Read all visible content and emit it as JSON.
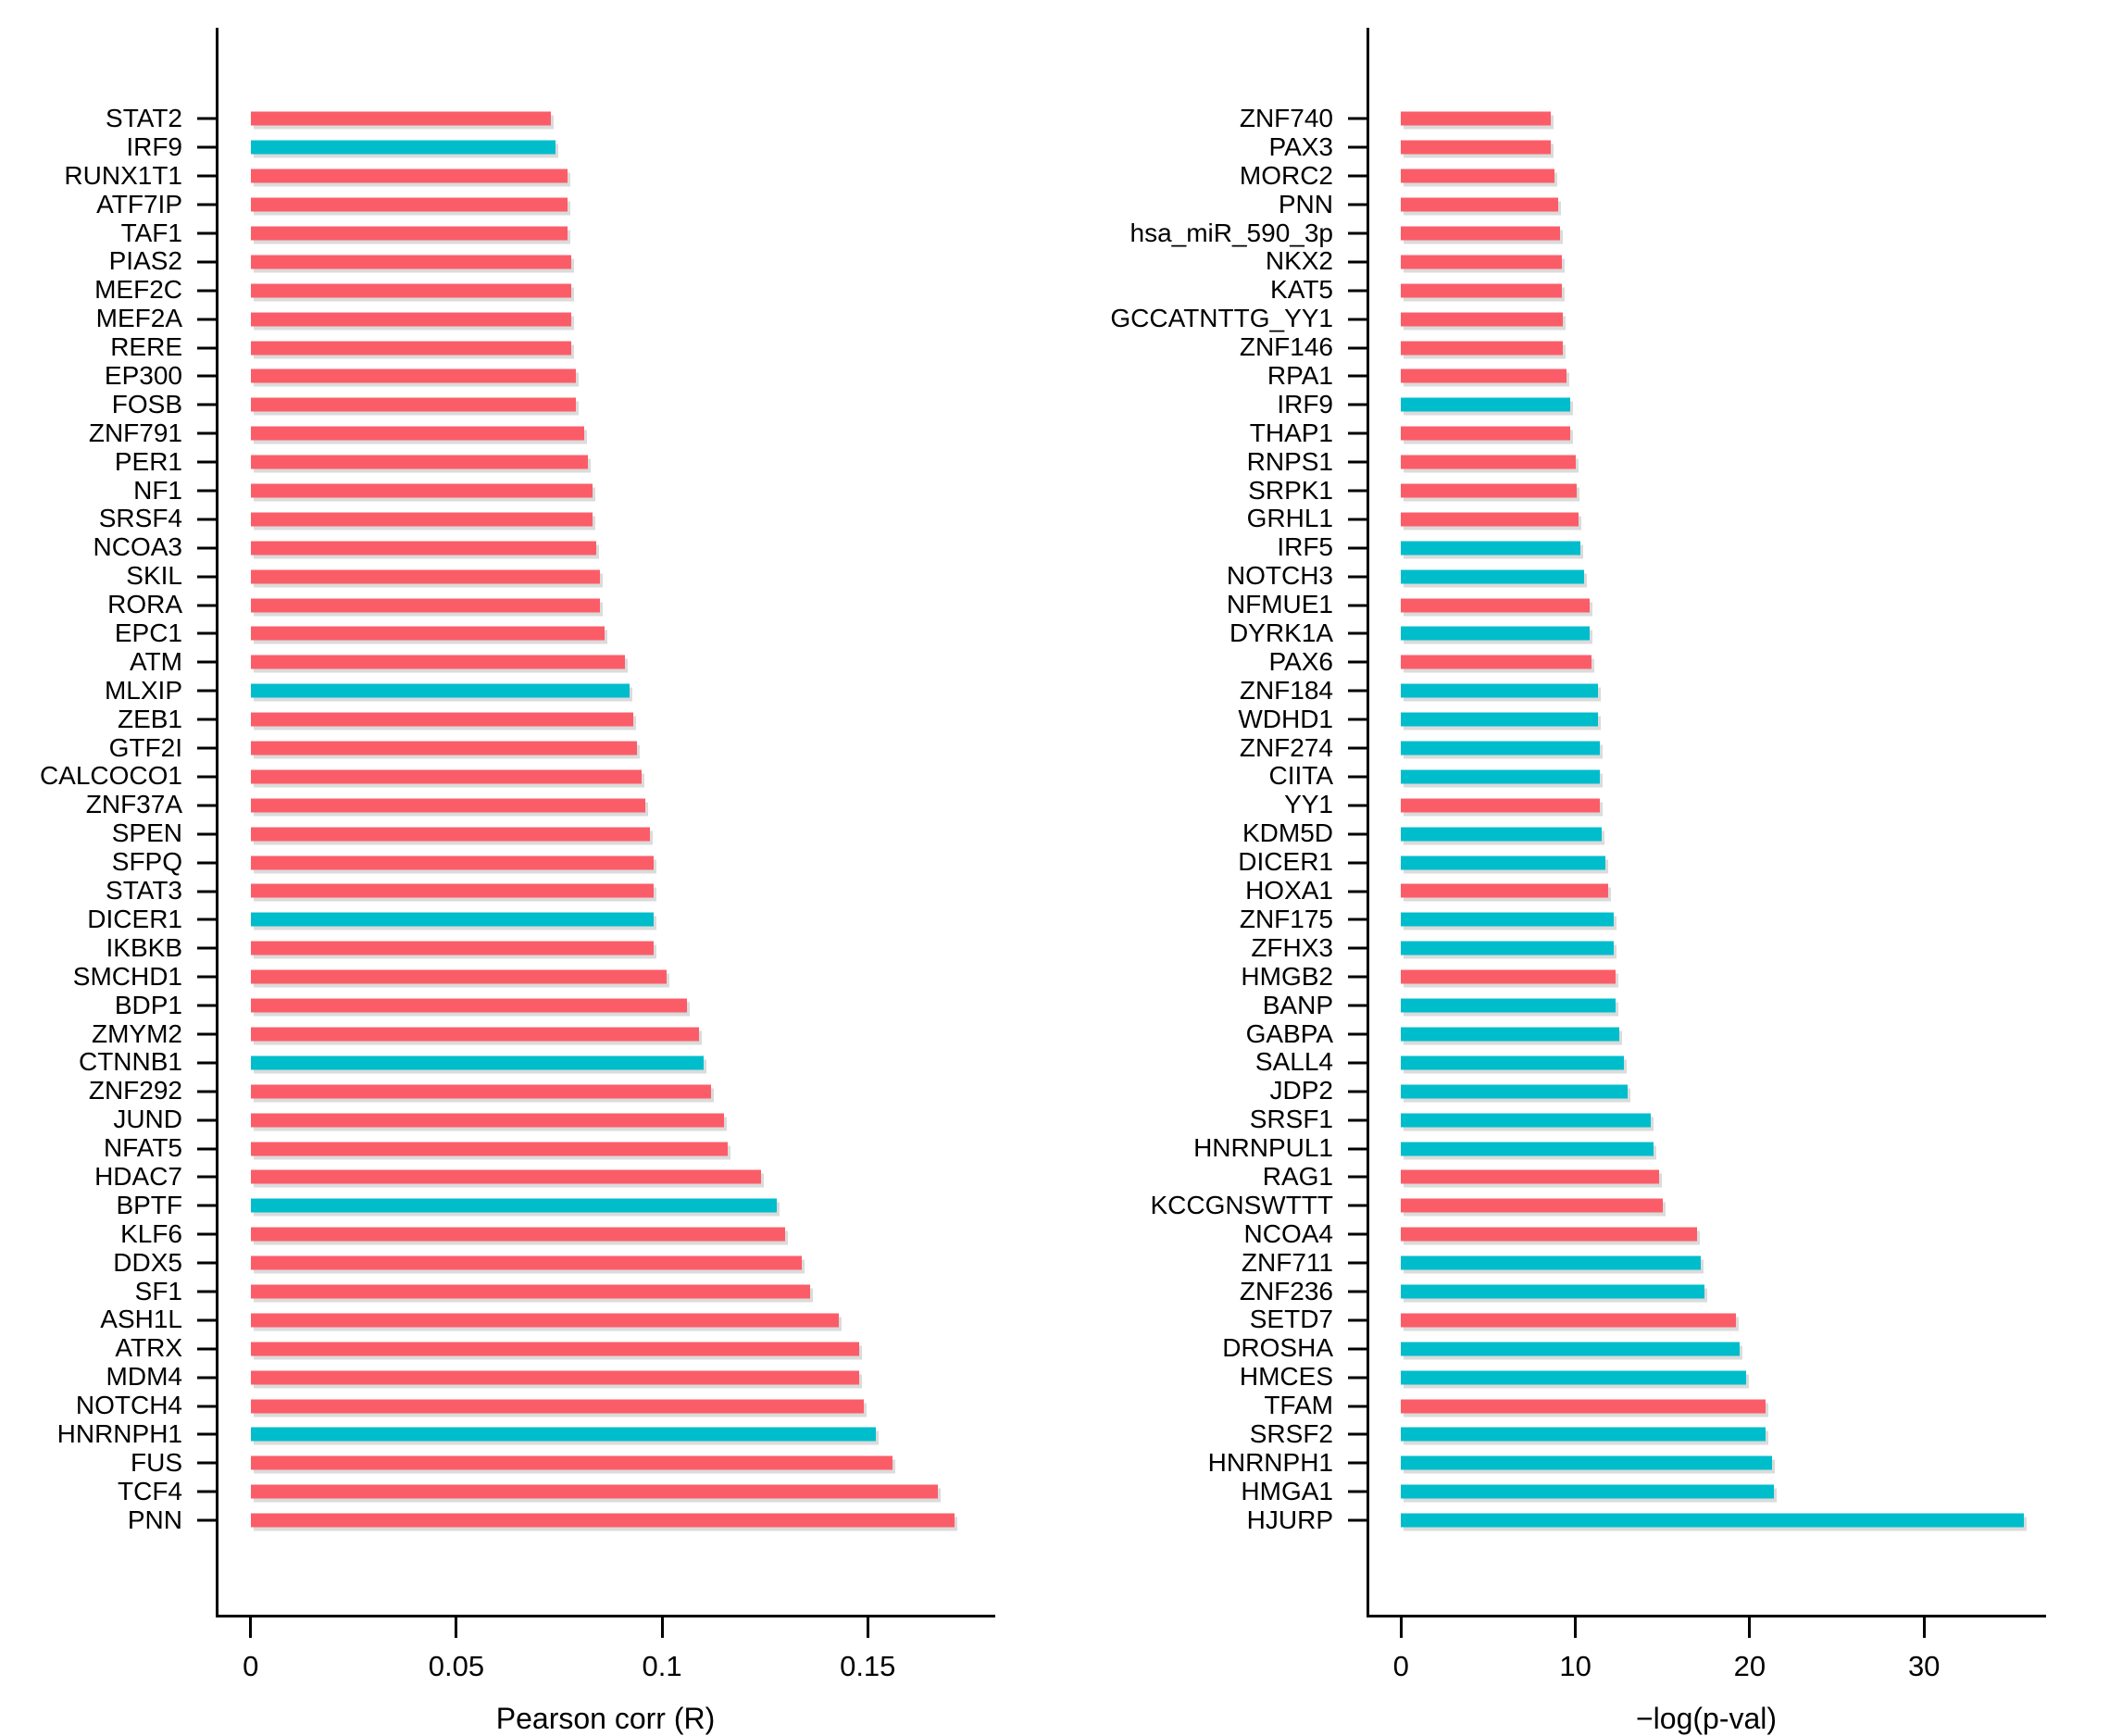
{
  "figure": {
    "background": "#ffffff"
  },
  "colors": {
    "red": "#FB5D68",
    "cyan": "#00BDCC",
    "axis": "#000000"
  },
  "chart_data": [
    {
      "type": "bar",
      "orientation": "horizontal",
      "xlabel": "Pearson corr (R)",
      "xlim": [
        0,
        0.181
      ],
      "grid": false,
      "x_ticks": [
        {
          "value": 0,
          "label": "0"
        },
        {
          "value": 0.05,
          "label": "0.05"
        },
        {
          "value": 0.1,
          "label": "0.1"
        },
        {
          "value": 0.15,
          "label": "0.15"
        }
      ],
      "categories": [
        "STAT2",
        "IRF9",
        "RUNX1T1",
        "ATF7IP",
        "TAF1",
        "PIAS2",
        "MEF2C",
        "MEF2A",
        "RERE",
        "EP300",
        "FOSB",
        "ZNF791",
        "PER1",
        "NF1",
        "SRSF4",
        "NCOA3",
        "SKIL",
        "RORA",
        "EPC1",
        "ATM",
        "MLXIP",
        "ZEB1",
        "GTF2I",
        "CALCOCO1",
        "ZNF37A",
        "SPEN",
        "SFPQ",
        "STAT3",
        "DICER1",
        "IKBKB",
        "SMCHD1",
        "BDP1",
        "ZMYM2",
        "CTNNB1",
        "ZNF292",
        "JUND",
        "NFAT5",
        "HDAC7",
        "BPTF",
        "KLF6",
        "DDX5",
        "SF1",
        "ASH1L",
        "ATRX",
        "MDM4",
        "NOTCH4",
        "HNRNPH1",
        "FUS",
        "TCF4",
        "PNN"
      ],
      "values": [
        0.073,
        0.074,
        0.077,
        0.077,
        0.077,
        0.078,
        0.078,
        0.078,
        0.078,
        0.079,
        0.079,
        0.081,
        0.082,
        0.083,
        0.083,
        0.084,
        0.085,
        0.085,
        0.086,
        0.091,
        0.092,
        0.093,
        0.094,
        0.095,
        0.096,
        0.097,
        0.098,
        0.098,
        0.098,
        0.098,
        0.101,
        0.106,
        0.109,
        0.11,
        0.112,
        0.115,
        0.116,
        0.124,
        0.128,
        0.13,
        0.134,
        0.136,
        0.143,
        0.148,
        0.148,
        0.149,
        0.152,
        0.156,
        0.167,
        0.171
      ],
      "bar_colors": [
        "red",
        "cyan",
        "red",
        "red",
        "red",
        "red",
        "red",
        "red",
        "red",
        "red",
        "red",
        "red",
        "red",
        "red",
        "red",
        "red",
        "red",
        "red",
        "red",
        "red",
        "cyan",
        "red",
        "red",
        "red",
        "red",
        "red",
        "red",
        "red",
        "cyan",
        "red",
        "red",
        "red",
        "red",
        "cyan",
        "red",
        "red",
        "red",
        "red",
        "cyan",
        "red",
        "red",
        "red",
        "red",
        "red",
        "red",
        "red",
        "cyan",
        "red",
        "red",
        "red"
      ]
    },
    {
      "type": "bar",
      "orientation": "horizontal",
      "xlabel": "−log(p-val)",
      "xlim": [
        0,
        37.0
      ],
      "grid": false,
      "x_ticks": [
        {
          "value": 0,
          "label": "0"
        },
        {
          "value": 10,
          "label": "10"
        },
        {
          "value": 20,
          "label": "20"
        },
        {
          "value": 30,
          "label": "30"
        }
      ],
      "categories": [
        "ZNF740",
        "PAX3",
        "MORC2",
        "PNN",
        "hsa_miR_590_3p",
        "NKX2",
        "KAT5",
        "GCCATNTTG_YY1",
        "ZNF146",
        "RPA1",
        "IRF9",
        "THAP1",
        "RNPS1",
        "SRPK1",
        "GRHL1",
        "IRF5",
        "NOTCH3",
        "NFMUE1",
        "DYRK1A",
        "PAX6",
        "ZNF184",
        "WDHD1",
        "ZNF274",
        "CIITA",
        "YY1",
        "KDM5D",
        "DICER1",
        "HOXA1",
        "ZNF175",
        "ZFHX3",
        "HMGB2",
        "BANP",
        "GABPA",
        "SALL4",
        "JDP2",
        "SRSF1",
        "HNRNPUL1",
        "RAG1",
        "KCCGNSWTTT",
        "NCOA4",
        "ZNF711",
        "ZNF236",
        "SETD7",
        "DROSHA",
        "HMCES",
        "TFAM",
        "SRSF2",
        "HNRNPH1",
        "HMGA1",
        "HJURP"
      ],
      "values": [
        8.6,
        8.6,
        8.8,
        9.0,
        9.1,
        9.2,
        9.2,
        9.3,
        9.3,
        9.5,
        9.7,
        9.7,
        10.0,
        10.1,
        10.2,
        10.3,
        10.5,
        10.8,
        10.8,
        10.9,
        11.3,
        11.3,
        11.4,
        11.4,
        11.4,
        11.5,
        11.7,
        11.9,
        12.2,
        12.2,
        12.3,
        12.3,
        12.5,
        12.8,
        13.0,
        14.3,
        14.5,
        14.8,
        15.0,
        17.0,
        17.2,
        17.4,
        19.2,
        19.4,
        19.8,
        20.9,
        20.9,
        21.3,
        21.4,
        35.7
      ],
      "bar_colors": [
        "red",
        "red",
        "red",
        "red",
        "red",
        "red",
        "red",
        "red",
        "red",
        "red",
        "cyan",
        "red",
        "red",
        "red",
        "red",
        "cyan",
        "cyan",
        "red",
        "cyan",
        "red",
        "cyan",
        "cyan",
        "cyan",
        "cyan",
        "red",
        "cyan",
        "cyan",
        "red",
        "cyan",
        "cyan",
        "red",
        "cyan",
        "cyan",
        "cyan",
        "cyan",
        "cyan",
        "cyan",
        "red",
        "red",
        "red",
        "cyan",
        "cyan",
        "red",
        "cyan",
        "cyan",
        "red",
        "cyan",
        "cyan",
        "cyan",
        "cyan"
      ]
    }
  ]
}
